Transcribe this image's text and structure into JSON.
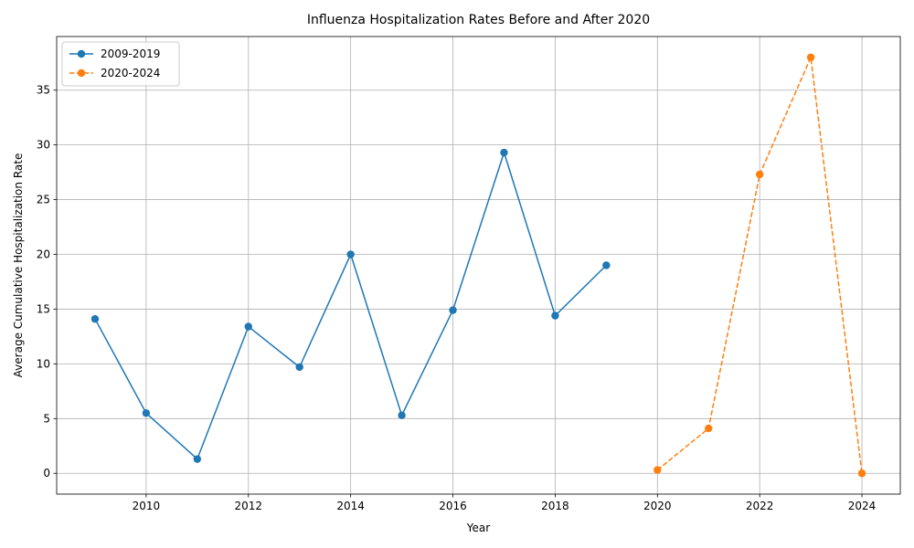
{
  "chart_data": {
    "type": "line",
    "title": "Influenza Hospitalization Rates Before and After 2020",
    "xlabel": "Year",
    "ylabel": "Average Cumulative Hospitalization Rate",
    "xlim": [
      2008.25,
      2024.75
    ],
    "ylim": [
      -1.9,
      39.9
    ],
    "xticks": [
      2010,
      2012,
      2014,
      2016,
      2018,
      2020,
      2022,
      2024
    ],
    "yticks": [
      0,
      5,
      10,
      15,
      20,
      25,
      30,
      35
    ],
    "grid": true,
    "legend_position": "top-left",
    "series": [
      {
        "name": "2009-2019",
        "color": "#1f77b4",
        "style": "solid",
        "x": [
          2009,
          2010,
          2011,
          2012,
          2013,
          2014,
          2015,
          2016,
          2017,
          2018,
          2019
        ],
        "y": [
          14.1,
          5.5,
          1.3,
          13.4,
          9.7,
          20.0,
          5.3,
          14.9,
          29.3,
          14.4,
          19.0
        ]
      },
      {
        "name": "2020-2024",
        "color": "#ff7f0e",
        "style": "dashed",
        "x": [
          2020,
          2021,
          2022,
          2023,
          2024
        ],
        "y": [
          0.3,
          4.1,
          27.3,
          38.0,
          0.0
        ]
      }
    ]
  }
}
